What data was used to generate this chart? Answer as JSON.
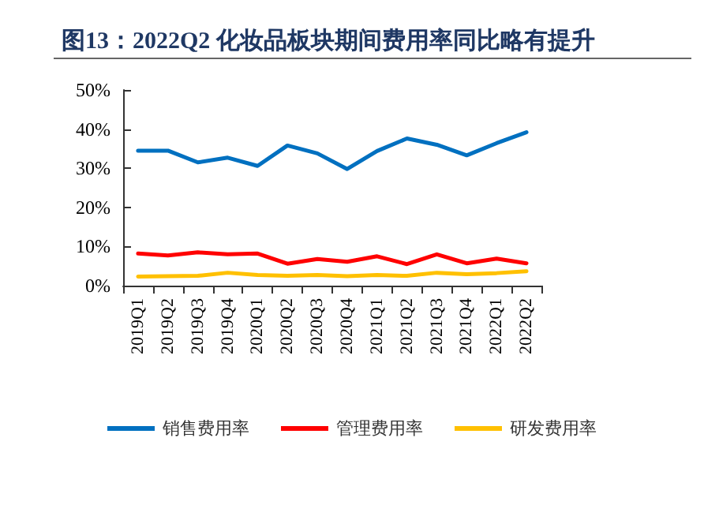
{
  "chart_data": {
    "type": "line",
    "title": "图13：2022Q2 化妆品板块期间费用率同比略有提升",
    "categories": [
      "2019Q1",
      "2019Q2",
      "2019Q3",
      "2019Q4",
      "2020Q1",
      "2020Q2",
      "2020Q3",
      "2020Q4",
      "2021Q1",
      "2021Q2",
      "2021Q3",
      "2021Q4",
      "2022Q1",
      "2022Q2"
    ],
    "series": [
      {
        "name": "销售费用率",
        "color": "#0070c0",
        "values": [
          34.5,
          34.5,
          31.5,
          32.7,
          30.6,
          35.8,
          33.8,
          29.8,
          34.4,
          37.6,
          36.0,
          33.3,
          36.4,
          39.2
        ]
      },
      {
        "name": "管理费用率",
        "color": "#ff0000",
        "values": [
          8.2,
          7.7,
          8.5,
          8.0,
          8.2,
          5.6,
          6.8,
          6.1,
          7.5,
          5.5,
          8.0,
          5.7,
          6.9,
          5.7
        ]
      },
      {
        "name": "研发费用率",
        "color": "#ffc000",
        "values": [
          2.3,
          2.4,
          2.5,
          3.3,
          2.7,
          2.5,
          2.7,
          2.4,
          2.7,
          2.5,
          3.3,
          2.9,
          3.2,
          3.7
        ]
      }
    ],
    "ylim": [
      0,
      50
    ],
    "yticks": [
      {
        "value": 0,
        "label": "0%"
      },
      {
        "value": 10,
        "label": "10%"
      },
      {
        "value": 20,
        "label": "20%"
      },
      {
        "value": 30,
        "label": "30%"
      },
      {
        "value": 40,
        "label": "40%"
      },
      {
        "value": 50,
        "label": "50%"
      }
    ],
    "grid": false,
    "legend": "bottom",
    "marker": "none",
    "line_style": "solid"
  }
}
